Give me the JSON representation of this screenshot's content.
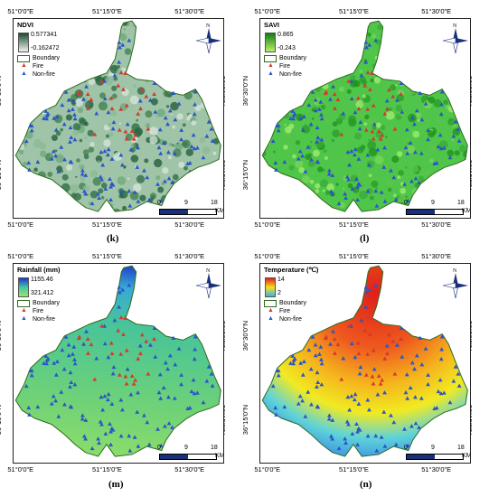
{
  "panels": [
    {
      "id": "k",
      "caption": "(k)",
      "legend_title": "NDVI",
      "high": "0.577341",
      "low": "-0.162472",
      "ramp": [
        "#1a4d2e",
        "#f0f0f0"
      ],
      "fill_type": "ndvi"
    },
    {
      "id": "l",
      "caption": "(l)",
      "legend_title": "SAVI",
      "high": "0.865",
      "low": "-0.243",
      "ramp": [
        "#127f12",
        "#b7f06a"
      ],
      "fill_type": "savi"
    },
    {
      "id": "m",
      "caption": "(m)",
      "legend_title": "Rainfall (mm)",
      "high": "1155.46",
      "low": "321.412",
      "ramp": [
        "#1d36c9",
        "#43c7a4",
        "#9be36a"
      ],
      "fill_type": "rain"
    },
    {
      "id": "n",
      "caption": "(n)",
      "legend_title": "Temperature (℃)",
      "high": "14",
      "low": "2",
      "ramp": [
        "#e0201b",
        "#f2e41c",
        "#3bb1ee"
      ],
      "fill_type": "temp"
    }
  ],
  "legend_items": {
    "boundary": "Boundary",
    "fire": "Fire",
    "non_fire": "Non-fire"
  },
  "scale_bar": {
    "labels": [
      "0",
      "9",
      "18"
    ],
    "unit": "KM"
  },
  "axes": {
    "top": [
      "51°0'0\"E",
      "51°15'0\"E",
      "51°30'0\"E"
    ],
    "bottom": [
      "51°0'0\"E",
      "51°15'0\"E",
      "51°30'0\"E"
    ],
    "side": [
      "36°30'0\"N",
      "36°15'0\"N"
    ]
  },
  "north_label": "N",
  "colors": {
    "fire": "#d43a2e",
    "non_fire": "#2a56c6",
    "boundary": "#2e6b1d"
  }
}
